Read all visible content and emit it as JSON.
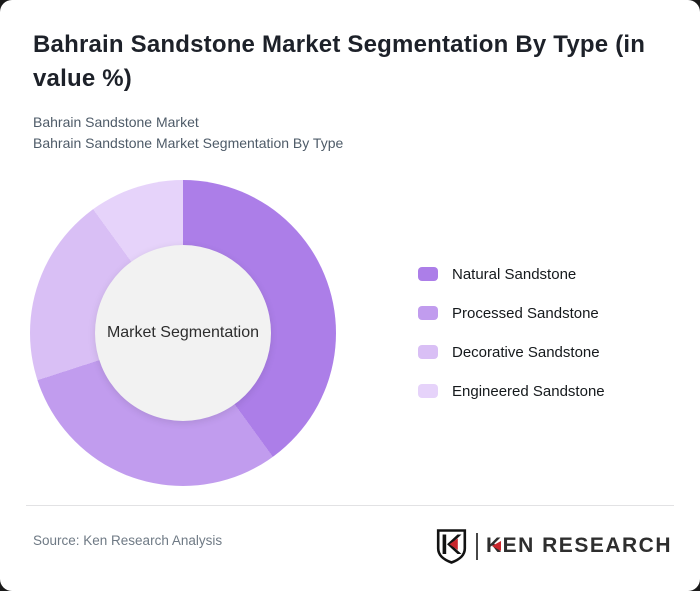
{
  "page": {
    "background_color": "#1a1a1a",
    "card_background_color": "#ffffff"
  },
  "header": {
    "title": "Bahrain Sandstone Market Segmentation By Type (in value %)",
    "subtitle_line1": "Bahrain Sandstone Market",
    "subtitle_line2": "Bahrain Sandstone Market Segmentation By Type"
  },
  "chart_data": {
    "type": "pie",
    "variant": "donut",
    "title": "Bahrain Sandstone Market Segmentation By Type (in value %)",
    "units": "value %",
    "center_label": "Market Segmentation",
    "legend_position": "right",
    "start_angle_deg": 0,
    "hole_color": "#f2f2f2",
    "series": [
      {
        "name": "Natural Sandstone",
        "value": 40,
        "color": "#ac7ee8"
      },
      {
        "name": "Processed Sandstone",
        "value": 30,
        "color": "#c19cee"
      },
      {
        "name": "Decorative Sandstone",
        "value": 20,
        "color": "#d9bff5"
      },
      {
        "name": "Engineered Sandstone",
        "value": 10,
        "color": "#e6d3fa"
      }
    ]
  },
  "footer": {
    "source": "Source: Ken Research Analysis",
    "logo_text": "KEN RESEARCH",
    "logo_accent_color": "#c9252c"
  }
}
